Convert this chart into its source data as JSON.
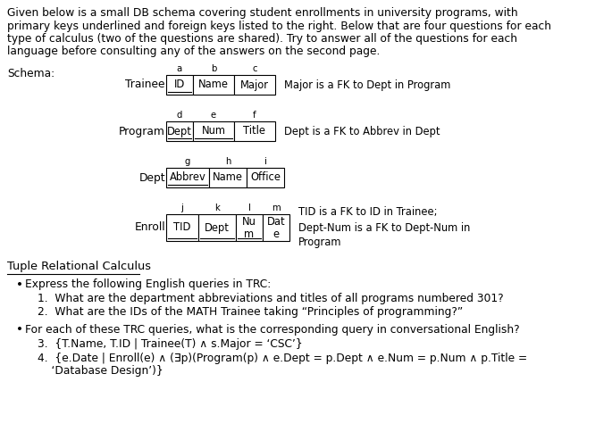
{
  "intro_text_lines": [
    "Given below is a small DB schema covering student enrollments in university programs, with",
    "primary keys underlined and foreign keys listed to the right. Below that are four questions for each",
    "type of calculus (two of the questions are shared). Try to answer all of the questions for each",
    "language before consulting any of the answers on the second page."
  ],
  "schema_label": "Schema:",
  "trainee_letters": [
    "a",
    "b",
    "c"
  ],
  "trainee_cols": [
    "ID",
    "Name",
    "Major"
  ],
  "trainee_pk": [
    0
  ],
  "trainee_fk": "Major is a FK to Dept in Program",
  "program_letters": [
    "d",
    "e",
    "f"
  ],
  "program_cols": [
    "Dept",
    "Num",
    "Title"
  ],
  "program_pk": [
    0,
    1
  ],
  "program_fk": "Dept is a FK to Abbrev in Dept",
  "dept_letters": [
    "g",
    "h",
    "i"
  ],
  "dept_cols": [
    "Abbrev",
    "Name",
    "Office"
  ],
  "dept_pk": [
    0
  ],
  "dept_fk": "",
  "enroll_letters": [
    "j",
    "k",
    "l",
    "m"
  ],
  "enroll_cols": [
    "TID",
    "Dept",
    "Nu\nm",
    "Dat\ne"
  ],
  "enroll_pk": [
    0,
    1,
    2
  ],
  "enroll_fk": "TID is a FK to ID in Trainee;\nDept-Num is a FK to Dept-Num in\nProgram",
  "section_title": "Tuple Relational Calculus",
  "bullet1": "Express the following English queries in TRC:",
  "q1": "What are the department abbreviations and titles of all programs numbered 301?",
  "q2": "What are the IDs of the MATH Trainee taking “Principles of programming?”",
  "bullet2": "For each of these TRC queries, what is the corresponding query in conversational English?",
  "q3": "{T.Name, T.ID | Trainee(T) ∧ s.Major = ‘CSC’}",
  "q4a": "{e.Date | Enroll(e) ∧ (∃p)(Program(p) ∧ e.Dept = p.Dept ∧ e.Num = p.Num ∧ p.Title =",
  "q4b": "    ‘Database Design’)}",
  "bg_color": "#ffffff",
  "text_color": "#000000"
}
